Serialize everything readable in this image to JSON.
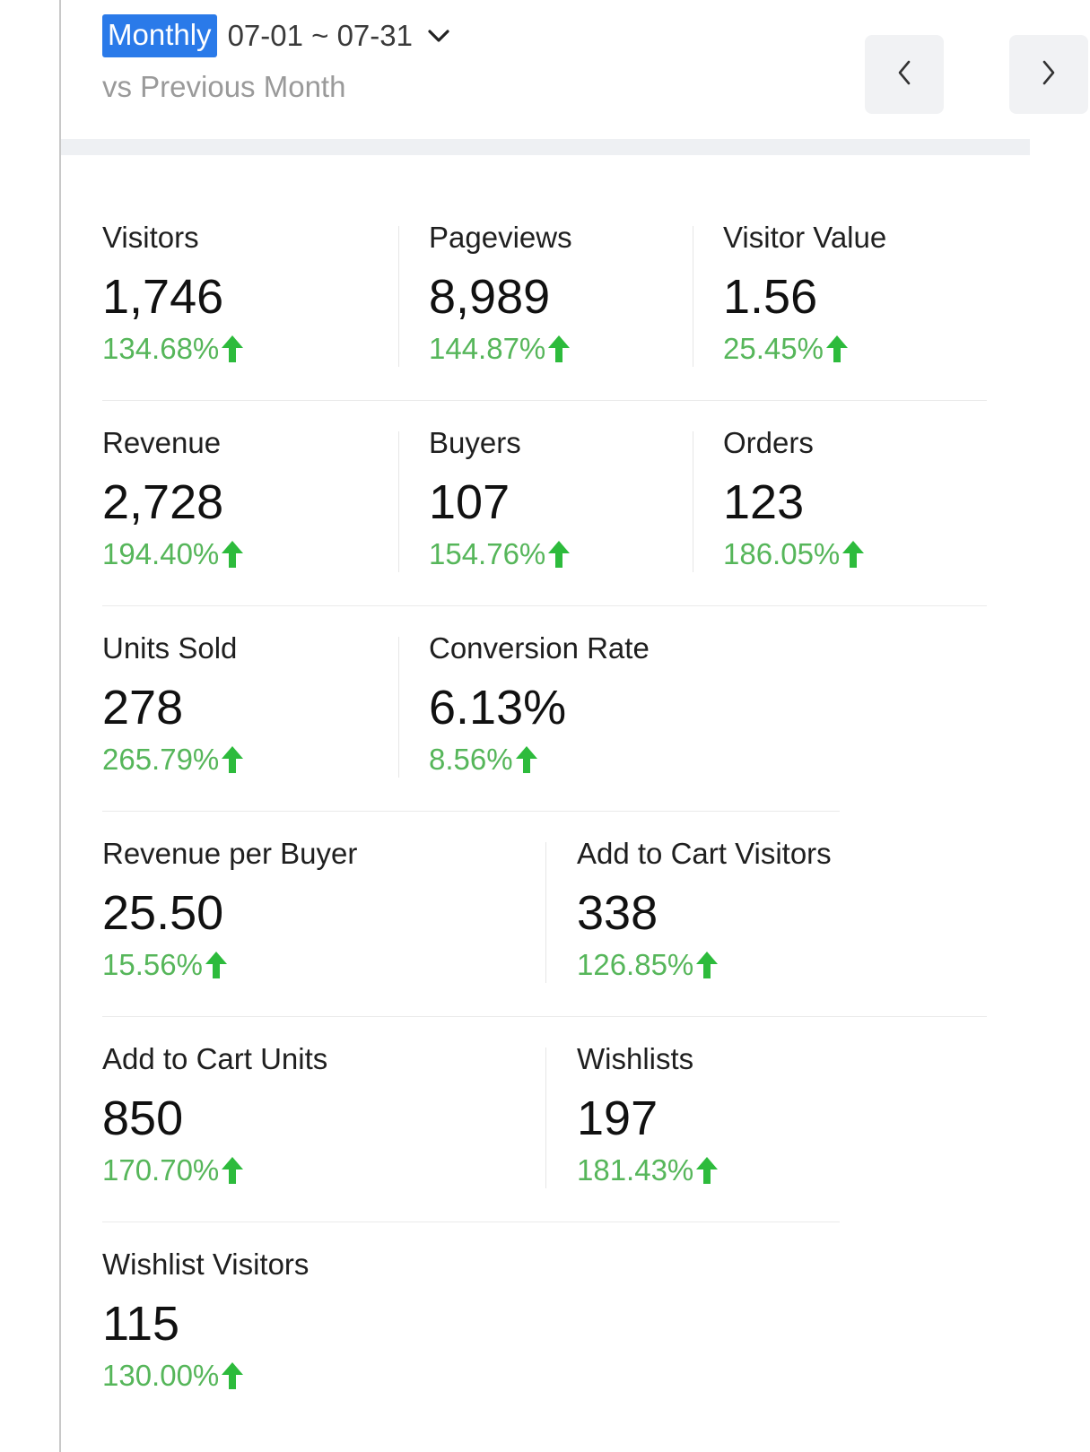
{
  "header": {
    "period": "Monthly",
    "date_range": "07-01 ~ 07-31",
    "comparison": "vs Previous Month"
  },
  "icons": {
    "dropdown": "chevron-down-icon",
    "prev": "chevron-left-icon",
    "next": "chevron-right-icon",
    "trend": "arrow-up-icon"
  },
  "colors": {
    "accent": "#2a7ae9",
    "positive": "#56b65a",
    "arrow": "#2dbb3c"
  },
  "metrics": [
    {
      "label": "Visitors",
      "value": "1,746",
      "change": "134.68%"
    },
    {
      "label": "Pageviews",
      "value": "8,989",
      "change": "144.87%"
    },
    {
      "label": "Visitor Value",
      "value": "1.56",
      "change": "25.45%"
    },
    {
      "label": "Revenue",
      "value": "2,728",
      "change": "194.40%"
    },
    {
      "label": "Buyers",
      "value": "107",
      "change": "154.76%"
    },
    {
      "label": "Orders",
      "value": "123",
      "change": "186.05%"
    },
    {
      "label": "Units Sold",
      "value": "278",
      "change": "265.79%"
    },
    {
      "label": "Conversion Rate",
      "value": "6.13%",
      "change": "8.56%"
    },
    {
      "label": "Revenue per Buyer",
      "value": "25.50",
      "change": "15.56%"
    },
    {
      "label": "Add to Cart Visitors",
      "value": "338",
      "change": "126.85%"
    },
    {
      "label": "Add to Cart Units",
      "value": "850",
      "change": "170.70%"
    },
    {
      "label": "Wishlists",
      "value": "197",
      "change": "181.43%"
    },
    {
      "label": "Wishlist Visitors",
      "value": "115",
      "change": "130.00%"
    }
  ]
}
